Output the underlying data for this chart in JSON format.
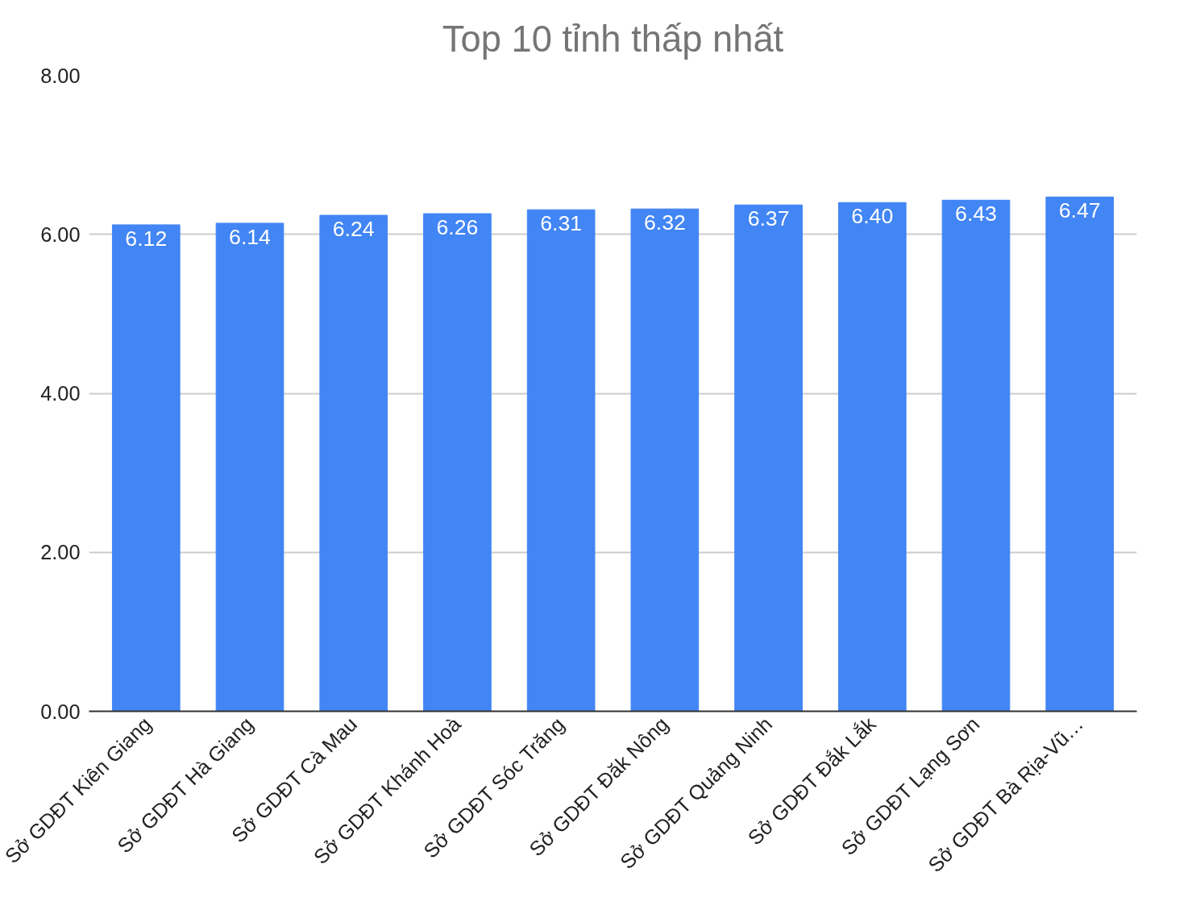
{
  "chart_data": {
    "type": "bar",
    "title": "Top 10 tỉnh thấp nhất",
    "categories": [
      "Sở GDĐT Kiên Giang",
      "Sở GDĐT Hà Giang",
      "Sở GDĐT Cà Mau",
      "Sở GDĐT Khánh Hoà",
      "Sở GDĐT Sóc Trăng",
      "Sở GDĐT Đăk Nông",
      "Sở GDĐT Quảng Ninh",
      "Sở GDĐT Đắk Lắk",
      "Sở GDĐT Lạng Sơn",
      "Sở GDĐT Bà Rịa-Vũ…"
    ],
    "values": [
      6.12,
      6.14,
      6.24,
      6.26,
      6.31,
      6.32,
      6.37,
      6.4,
      6.43,
      6.47
    ],
    "value_labels": [
      "6.12",
      "6.14",
      "6.24",
      "6.26",
      "6.31",
      "6.32",
      "6.37",
      "6.40",
      "6.43",
      "6.47"
    ],
    "color": "#4285f4",
    "ylim": [
      0,
      8
    ],
    "yticks": [
      {
        "value": 0,
        "label": "0.00"
      },
      {
        "value": 2,
        "label": "2.00"
      },
      {
        "value": 4,
        "label": "4.00"
      },
      {
        "value": 6,
        "label": "6.00"
      },
      {
        "value": 8,
        "label": "8.00"
      }
    ],
    "grid": "y"
  }
}
